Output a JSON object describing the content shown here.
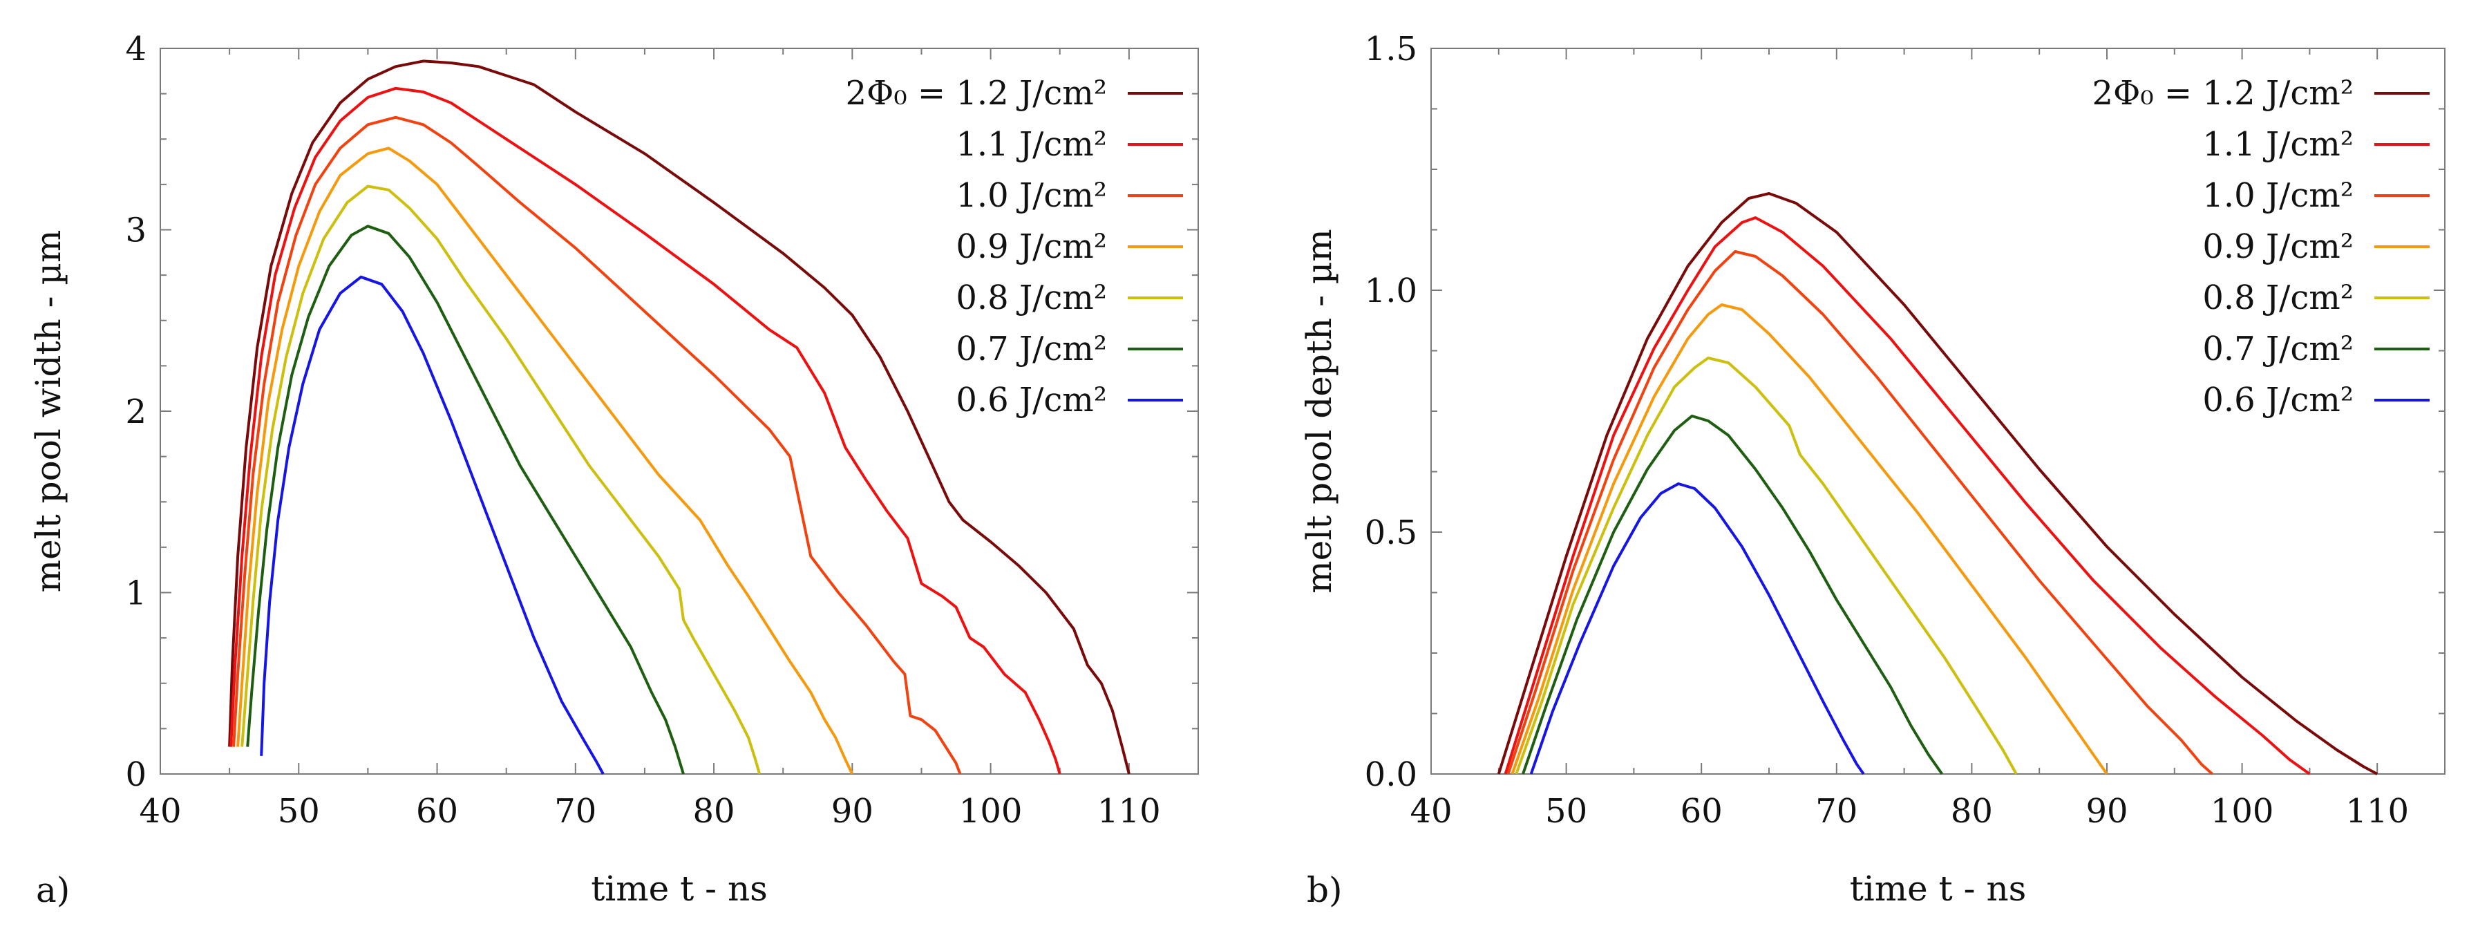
{
  "chart_data": [
    {
      "type": "line",
      "panel_label": "a)",
      "xlabel": "time t - ns",
      "ylabel": "melt pool width - µm",
      "xlim": [
        40,
        115
      ],
      "ylim": [
        0,
        4
      ],
      "xticks": [
        40,
        50,
        60,
        70,
        80,
        90,
        100,
        110
      ],
      "yticks": [
        0,
        1,
        2,
        3,
        4
      ],
      "ytick_labels": [
        "0",
        "1",
        "2",
        "3",
        "4"
      ],
      "legend_position": "top-right",
      "series": [
        {
          "name": "2Φ₀ = 1.2 J/cm²",
          "color": "#7a0a0a",
          "x": [
            45.0,
            45.2,
            45.6,
            46.2,
            47.0,
            48.0,
            49.5,
            51.0,
            53.0,
            55.0,
            57.0,
            59.0,
            61.0,
            63.0,
            65.0,
            67.0,
            70.0,
            75.0,
            80.0,
            85.0,
            88.0,
            90.0,
            92.0,
            94.0,
            95.5,
            97.0,
            98.0,
            100.0,
            102.0,
            104.0,
            106.0,
            107.0,
            108.0,
            108.8,
            109.5,
            110.0
          ],
          "y": [
            0.15,
            0.6,
            1.2,
            1.8,
            2.35,
            2.8,
            3.2,
            3.48,
            3.7,
            3.83,
            3.9,
            3.93,
            3.92,
            3.9,
            3.85,
            3.8,
            3.65,
            3.42,
            3.15,
            2.87,
            2.68,
            2.53,
            2.3,
            2.0,
            1.75,
            1.5,
            1.4,
            1.28,
            1.15,
            1.0,
            0.8,
            0.6,
            0.5,
            0.35,
            0.15,
            0.0
          ]
        },
        {
          "name": "1.1 J/cm²",
          "color": "#ee1111",
          "x": [
            45.1,
            45.4,
            45.9,
            46.5,
            47.3,
            48.3,
            49.7,
            51.2,
            53.0,
            55.0,
            57.0,
            59.0,
            61.0,
            63.0,
            66.0,
            70.0,
            75.0,
            80.0,
            84.0,
            86.0,
            88.0,
            89.5,
            91.0,
            92.5,
            94.0,
            95.0,
            96.5,
            97.5,
            98.5,
            99.5,
            101.0,
            102.5,
            103.5,
            104.2,
            104.7,
            105.0
          ],
          "y": [
            0.15,
            0.6,
            1.2,
            1.75,
            2.3,
            2.75,
            3.12,
            3.4,
            3.6,
            3.73,
            3.78,
            3.76,
            3.7,
            3.6,
            3.45,
            3.25,
            2.98,
            2.7,
            2.45,
            2.35,
            2.1,
            1.8,
            1.62,
            1.45,
            1.3,
            1.05,
            0.98,
            0.92,
            0.75,
            0.7,
            0.55,
            0.45,
            0.3,
            0.18,
            0.08,
            0.0
          ]
        },
        {
          "name": "1.0 J/cm²",
          "color": "#f2420f",
          "x": [
            45.3,
            45.6,
            46.1,
            46.7,
            47.5,
            48.5,
            49.8,
            51.2,
            53.0,
            55.0,
            57.0,
            59.0,
            61.0,
            63.0,
            66.0,
            70.0,
            75.0,
            80.0,
            84.0,
            85.5,
            87.0,
            89.0,
            91.0,
            93.0,
            93.8,
            94.2,
            95.0,
            96.0,
            96.5,
            97.0,
            97.5,
            97.8
          ],
          "y": [
            0.15,
            0.55,
            1.1,
            1.65,
            2.15,
            2.6,
            2.97,
            3.25,
            3.45,
            3.58,
            3.62,
            3.58,
            3.48,
            3.35,
            3.15,
            2.9,
            2.55,
            2.2,
            1.9,
            1.75,
            1.2,
            1.0,
            0.82,
            0.62,
            0.55,
            0.32,
            0.3,
            0.24,
            0.18,
            0.12,
            0.06,
            0.0
          ]
        },
        {
          "name": "0.9 J/cm²",
          "color": "#f59a0c",
          "x": [
            45.6,
            45.9,
            46.4,
            47.0,
            47.8,
            48.8,
            50.0,
            51.5,
            53.0,
            55.0,
            56.5,
            58.0,
            60.0,
            62.0,
            65.0,
            68.0,
            72.0,
            76.0,
            79.0,
            81.0,
            82.5,
            84.0,
            85.5,
            87.0,
            88.0,
            88.8,
            89.5,
            90.0
          ],
          "y": [
            0.15,
            0.5,
            1.05,
            1.55,
            2.05,
            2.45,
            2.8,
            3.1,
            3.3,
            3.42,
            3.45,
            3.38,
            3.25,
            3.05,
            2.75,
            2.45,
            2.05,
            1.65,
            1.4,
            1.15,
            0.98,
            0.8,
            0.62,
            0.45,
            0.3,
            0.2,
            0.08,
            0.0
          ]
        },
        {
          "name": "0.8 J/cm²",
          "color": "#cdbf0d",
          "x": [
            45.9,
            46.2,
            46.7,
            47.3,
            48.1,
            49.1,
            50.3,
            51.8,
            53.5,
            55.0,
            56.5,
            58.0,
            60.0,
            62.0,
            65.0,
            68.0,
            71.0,
            74.0,
            76.0,
            77.5,
            77.8,
            78.5,
            80.0,
            81.5,
            82.5,
            83.0,
            83.3
          ],
          "y": [
            0.15,
            0.45,
            0.95,
            1.45,
            1.9,
            2.3,
            2.65,
            2.95,
            3.15,
            3.24,
            3.22,
            3.12,
            2.95,
            2.72,
            2.4,
            2.05,
            1.7,
            1.4,
            1.2,
            1.02,
            0.85,
            0.75,
            0.55,
            0.35,
            0.2,
            0.08,
            0.0
          ]
        },
        {
          "name": "0.7 J/cm²",
          "color": "#1d5e10",
          "x": [
            46.3,
            46.6,
            47.1,
            47.7,
            48.5,
            49.5,
            50.7,
            52.2,
            53.8,
            55.0,
            56.5,
            58.0,
            60.0,
            62.0,
            64.0,
            66.0,
            68.0,
            70.0,
            72.0,
            74.0,
            75.5,
            76.5,
            77.2,
            77.6,
            77.8
          ],
          "y": [
            0.15,
            0.45,
            0.9,
            1.35,
            1.8,
            2.2,
            2.52,
            2.8,
            2.97,
            3.02,
            2.98,
            2.85,
            2.6,
            2.3,
            2.0,
            1.7,
            1.45,
            1.2,
            0.95,
            0.7,
            0.45,
            0.3,
            0.15,
            0.05,
            0.0
          ]
        },
        {
          "name": "0.6 J/cm²",
          "color": "#1515e6",
          "x": [
            47.3,
            47.5,
            47.9,
            48.5,
            49.3,
            50.3,
            51.5,
            53.0,
            54.5,
            56.0,
            57.5,
            59.0,
            61.0,
            63.0,
            65.0,
            67.0,
            69.0,
            70.5,
            71.5,
            72.0
          ],
          "y": [
            0.1,
            0.5,
            0.95,
            1.4,
            1.8,
            2.15,
            2.45,
            2.65,
            2.74,
            2.7,
            2.55,
            2.32,
            1.95,
            1.55,
            1.15,
            0.75,
            0.4,
            0.2,
            0.07,
            0.0
          ]
        }
      ],
      "legend_labels": [
        "2Φ₀ = 1.2 J/cm²",
        "1.1 J/cm²",
        "1.0 J/cm²",
        "0.9 J/cm²",
        "0.8 J/cm²",
        "0.7 J/cm²",
        "0.6 J/cm²"
      ]
    },
    {
      "type": "line",
      "panel_label": "b)",
      "xlabel": "time t - ns",
      "ylabel": "melt pool depth - µm",
      "xlim": [
        40,
        115
      ],
      "ylim": [
        0,
        1.5
      ],
      "xticks": [
        40,
        50,
        60,
        70,
        80,
        90,
        100,
        110
      ],
      "yticks": [
        0,
        0.5,
        1.0,
        1.5
      ],
      "ytick_labels": [
        "0.0",
        "0.5",
        "1.0",
        "1.5"
      ],
      "legend_position": "top-right",
      "series": [
        {
          "name": "2Φ₀ = 1.2 J/cm²",
          "color": "#7a0a0a",
          "x": [
            45.0,
            47.0,
            50.0,
            53.0,
            56.0,
            59.0,
            61.5,
            63.5,
            65.0,
            67.0,
            70.0,
            75.0,
            80.0,
            85.0,
            90.0,
            95.0,
            100.0,
            104.0,
            107.0,
            109.0,
            110.0
          ],
          "y": [
            0.0,
            0.18,
            0.45,
            0.7,
            0.9,
            1.05,
            1.14,
            1.19,
            1.2,
            1.18,
            1.12,
            0.97,
            0.8,
            0.63,
            0.47,
            0.33,
            0.2,
            0.11,
            0.05,
            0.015,
            0.0
          ]
        },
        {
          "name": "1.1 J/cm²",
          "color": "#ee1111",
          "x": [
            45.5,
            47.5,
            50.5,
            53.5,
            56.5,
            59.0,
            61.0,
            63.0,
            64.0,
            66.0,
            69.0,
            74.0,
            79.0,
            84.0,
            89.0,
            94.0,
            98.0,
            101.5,
            103.5,
            104.5,
            105.0
          ],
          "y": [
            0.0,
            0.18,
            0.45,
            0.7,
            0.88,
            1.0,
            1.09,
            1.14,
            1.15,
            1.12,
            1.05,
            0.9,
            0.73,
            0.56,
            0.4,
            0.26,
            0.16,
            0.08,
            0.03,
            0.01,
            0.0
          ]
        },
        {
          "name": "1.0 J/cm²",
          "color": "#f2420f",
          "x": [
            45.7,
            47.7,
            50.5,
            53.5,
            56.5,
            59.0,
            61.0,
            62.5,
            64.0,
            66.0,
            69.0,
            73.0,
            77.0,
            81.0,
            85.0,
            89.0,
            93.0,
            95.5,
            97.0,
            97.8
          ],
          "y": [
            0.0,
            0.17,
            0.42,
            0.65,
            0.84,
            0.96,
            1.04,
            1.08,
            1.07,
            1.03,
            0.95,
            0.82,
            0.68,
            0.54,
            0.4,
            0.27,
            0.14,
            0.07,
            0.02,
            0.0
          ]
        },
        {
          "name": "0.9 J/cm²",
          "color": "#f59a0c",
          "x": [
            46.0,
            48.0,
            50.5,
            53.5,
            56.5,
            59.0,
            60.5,
            61.5,
            63.0,
            65.0,
            68.0,
            72.0,
            76.0,
            80.0,
            84.0,
            87.0,
            89.0,
            90.0
          ],
          "y": [
            0.0,
            0.16,
            0.38,
            0.6,
            0.78,
            0.9,
            0.95,
            0.97,
            0.96,
            0.91,
            0.82,
            0.68,
            0.54,
            0.39,
            0.24,
            0.12,
            0.04,
            0.0
          ]
        },
        {
          "name": "0.8 J/cm²",
          "color": "#cdbf0d",
          "x": [
            46.3,
            48.2,
            50.5,
            53.5,
            56.0,
            58.0,
            59.5,
            60.5,
            62.0,
            64.0,
            66.5,
            67.3,
            69.0,
            72.0,
            75.0,
            78.0,
            80.5,
            82.3,
            83.3
          ],
          "y": [
            0.0,
            0.15,
            0.35,
            0.55,
            0.7,
            0.8,
            0.84,
            0.86,
            0.85,
            0.8,
            0.72,
            0.66,
            0.6,
            0.48,
            0.36,
            0.24,
            0.13,
            0.05,
            0.0
          ]
        },
        {
          "name": "0.7 J/cm²",
          "color": "#1d5e10",
          "x": [
            46.8,
            48.5,
            50.8,
            53.5,
            56.0,
            58.0,
            59.3,
            60.5,
            62.0,
            64.0,
            66.0,
            68.0,
            70.0,
            72.0,
            74.0,
            75.5,
            76.8,
            77.8
          ],
          "y": [
            0.0,
            0.14,
            0.32,
            0.5,
            0.63,
            0.71,
            0.74,
            0.73,
            0.7,
            0.63,
            0.55,
            0.46,
            0.36,
            0.27,
            0.18,
            0.1,
            0.04,
            0.0
          ]
        },
        {
          "name": "0.6 J/cm²",
          "color": "#1515e6",
          "x": [
            47.4,
            49.0,
            51.0,
            53.5,
            55.5,
            57.0,
            58.3,
            59.5,
            61.0,
            63.0,
            65.0,
            67.0,
            69.0,
            70.5,
            71.5,
            72.0
          ],
          "y": [
            0.0,
            0.13,
            0.27,
            0.43,
            0.53,
            0.58,
            0.6,
            0.59,
            0.55,
            0.47,
            0.37,
            0.26,
            0.15,
            0.07,
            0.02,
            0.0
          ]
        }
      ],
      "legend_labels": [
        "2Φ₀ = 1.2 J/cm²",
        "1.1 J/cm²",
        "1.0 J/cm²",
        "0.9 J/cm²",
        "0.8 J/cm²",
        "0.7 J/cm²",
        "0.6 J/cm²"
      ]
    }
  ]
}
